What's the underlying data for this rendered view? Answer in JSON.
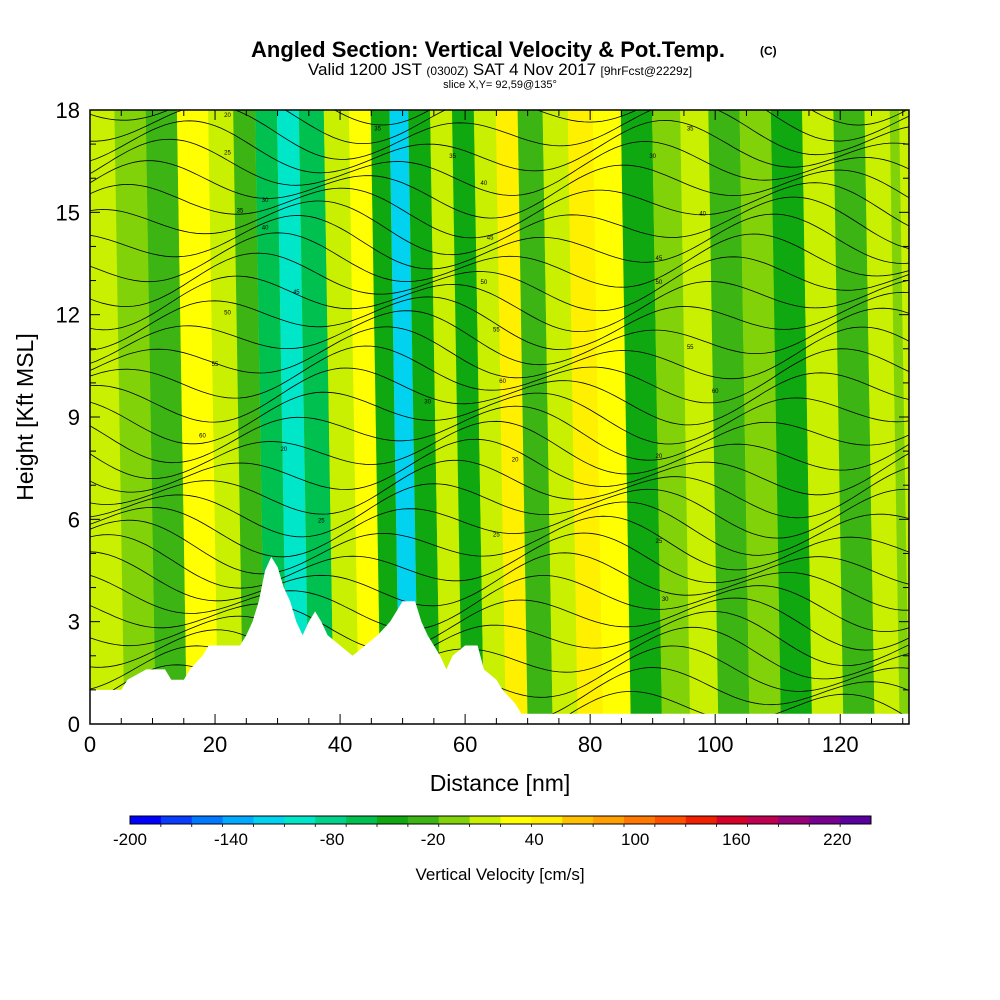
{
  "chart_data": {
    "type": "heatmap",
    "title": "Angled Section: Vertical Velocity & Pot.Temp.",
    "title_suffix": "(C)",
    "subtitle_prefix": "Valid 1200 JST",
    "subtitle_utc": "(0300Z)",
    "subtitle_date": "SAT 4 Nov 2017",
    "subtitle_fcst": "[9hrFcst@2229z]",
    "slice_label": "slice X,Y= 92,59@135°",
    "xlabel": "Distance [nm]",
    "ylabel": "Height [Kft MSL]",
    "xlim": [
      0,
      131
    ],
    "ylim": [
      0,
      18
    ],
    "x_ticks": [
      "0",
      "20",
      "40",
      "60",
      "80",
      "100",
      "120"
    ],
    "y_ticks": [
      "0",
      "3",
      "6",
      "9",
      "12",
      "15",
      "18"
    ],
    "colorbar": {
      "title": "Vertical Velocity [cm/s]",
      "tick_labels": [
        "-200",
        "-140",
        "-80",
        "-20",
        "40",
        "100",
        "160",
        "220"
      ],
      "min": -200,
      "max": 240,
      "step": 20,
      "colors": [
        "#0000ff",
        "#0a3cff",
        "#0078ff",
        "#00aaff",
        "#00d2f0",
        "#00e6c8",
        "#00d28c",
        "#00c050",
        "#10a810",
        "#3cb414",
        "#82d20a",
        "#c8f000",
        "#ffff00",
        "#fff000",
        "#ffc000",
        "#ffa000",
        "#ff7800",
        "#ff5000",
        "#f02000",
        "#d70028",
        "#c00050",
        "#960078",
        "#780090",
        "#5a00a0"
      ]
    },
    "velocity_bands": [
      {
        "x": 3,
        "value": 22
      },
      {
        "x": 8,
        "value": 4
      },
      {
        "x": 13,
        "value": -8
      },
      {
        "x": 18,
        "value": 46
      },
      {
        "x": 23,
        "value": 30
      },
      {
        "x": 26,
        "value": -18
      },
      {
        "x": 30,
        "value": -52
      },
      {
        "x": 33,
        "value": -88
      },
      {
        "x": 37,
        "value": -55
      },
      {
        "x": 41,
        "value": 20
      },
      {
        "x": 45,
        "value": 58
      },
      {
        "x": 48,
        "value": -30
      },
      {
        "x": 51,
        "value": -110
      },
      {
        "x": 54,
        "value": -25
      },
      {
        "x": 58,
        "value": 25
      },
      {
        "x": 61,
        "value": -28
      },
      {
        "x": 65,
        "value": 30
      },
      {
        "x": 68,
        "value": 72
      },
      {
        "x": 72,
        "value": -12
      },
      {
        "x": 76,
        "value": 28
      },
      {
        "x": 80,
        "value": 62
      },
      {
        "x": 84,
        "value": 40
      },
      {
        "x": 89,
        "value": -32
      },
      {
        "x": 94,
        "value": 2
      },
      {
        "x": 98,
        "value": 30
      },
      {
        "x": 103,
        "value": -6
      },
      {
        "x": 108,
        "value": 14
      },
      {
        "x": 113,
        "value": -22
      },
      {
        "x": 118,
        "value": 20
      },
      {
        "x": 123,
        "value": -14
      },
      {
        "x": 128,
        "value": 26
      },
      {
        "x": 131,
        "value": 10
      }
    ],
    "terrain": [
      [
        0,
        1.0
      ],
      [
        5,
        1.0
      ],
      [
        6,
        1.3
      ],
      [
        9,
        1.6
      ],
      [
        12,
        1.6
      ],
      [
        13,
        1.3
      ],
      [
        15,
        1.3
      ],
      [
        16,
        1.6
      ],
      [
        18,
        2.0
      ],
      [
        19,
        2.3
      ],
      [
        24,
        2.3
      ],
      [
        25,
        2.6
      ],
      [
        26,
        3.0
      ],
      [
        27,
        3.6
      ],
      [
        28,
        4.5
      ],
      [
        29,
        4.9
      ],
      [
        30,
        4.6
      ],
      [
        31,
        4.0
      ],
      [
        32,
        3.6
      ],
      [
        33,
        3.0
      ],
      [
        34,
        2.6
      ],
      [
        35,
        3.0
      ],
      [
        36,
        3.3
      ],
      [
        37,
        3.0
      ],
      [
        38,
        2.6
      ],
      [
        40,
        2.3
      ],
      [
        42,
        2.0
      ],
      [
        44,
        2.3
      ],
      [
        46,
        2.6
      ],
      [
        48,
        3.0
      ],
      [
        50,
        3.6
      ],
      [
        52,
        3.6
      ],
      [
        53,
        3.0
      ],
      [
        54,
        2.6
      ],
      [
        56,
        2.0
      ],
      [
        57,
        1.6
      ],
      [
        58,
        2.0
      ],
      [
        60,
        2.3
      ],
      [
        62,
        2.3
      ],
      [
        63,
        1.6
      ],
      [
        65,
        1.3
      ],
      [
        66,
        1.0
      ],
      [
        68,
        0.6
      ],
      [
        69,
        0.3
      ],
      [
        70,
        0.3
      ],
      [
        131,
        0.3
      ]
    ],
    "contour_labels": [
      "20",
      "25",
      "30",
      "35",
      "40",
      "45",
      "50",
      "55",
      "60"
    ]
  }
}
